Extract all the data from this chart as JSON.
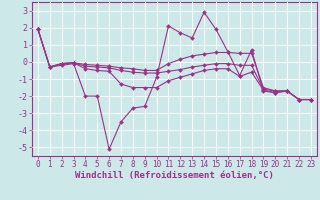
{
  "bg_color": "#cce8e8",
  "grid_color": "#ffffff",
  "line_color": "#993388",
  "xlabel": "Windchill (Refroidissement éolien,°C)",
  "xlim": [
    -0.5,
    23.5
  ],
  "ylim": [
    -5.5,
    3.5
  ],
  "yticks": [
    -5,
    -4,
    -3,
    -2,
    -1,
    0,
    1,
    2,
    3
  ],
  "xticks": [
    0,
    1,
    2,
    3,
    4,
    5,
    6,
    7,
    8,
    9,
    10,
    11,
    12,
    13,
    14,
    15,
    16,
    17,
    18,
    19,
    20,
    21,
    22,
    23
  ],
  "series": [
    [
      1.9,
      -0.3,
      -0.2,
      -0.1,
      -2.0,
      -2.0,
      -5.1,
      -3.5,
      -2.7,
      -2.6,
      -0.9,
      2.1,
      1.7,
      1.4,
      2.9,
      1.9,
      0.6,
      -0.8,
      0.7,
      -1.7,
      -1.8,
      -1.7,
      -2.2,
      -2.2
    ],
    [
      1.9,
      -0.3,
      -0.1,
      -0.05,
      -0.15,
      -0.2,
      -0.25,
      -0.35,
      -0.4,
      -0.5,
      -0.5,
      -0.1,
      0.15,
      0.35,
      0.45,
      0.55,
      0.55,
      0.5,
      0.5,
      -1.5,
      -1.7,
      -1.7,
      -2.2,
      -2.2
    ],
    [
      1.9,
      -0.3,
      -0.1,
      -0.05,
      -0.25,
      -0.3,
      -0.35,
      -0.5,
      -0.6,
      -0.65,
      -0.65,
      -0.55,
      -0.45,
      -0.3,
      -0.2,
      -0.1,
      -0.1,
      -0.2,
      -0.2,
      -1.6,
      -1.7,
      -1.7,
      -2.2,
      -2.2
    ],
    [
      1.9,
      -0.3,
      -0.1,
      -0.05,
      -0.4,
      -0.5,
      -0.55,
      -1.3,
      -1.5,
      -1.5,
      -1.5,
      -1.1,
      -0.9,
      -0.7,
      -0.5,
      -0.4,
      -0.4,
      -0.85,
      -0.6,
      -1.65,
      -1.8,
      -1.7,
      -2.2,
      -2.2
    ]
  ],
  "xlabel_fontsize": 6.5,
  "tick_fontsize": 5.5,
  "linewidth": 0.8,
  "markersize": 2.0
}
